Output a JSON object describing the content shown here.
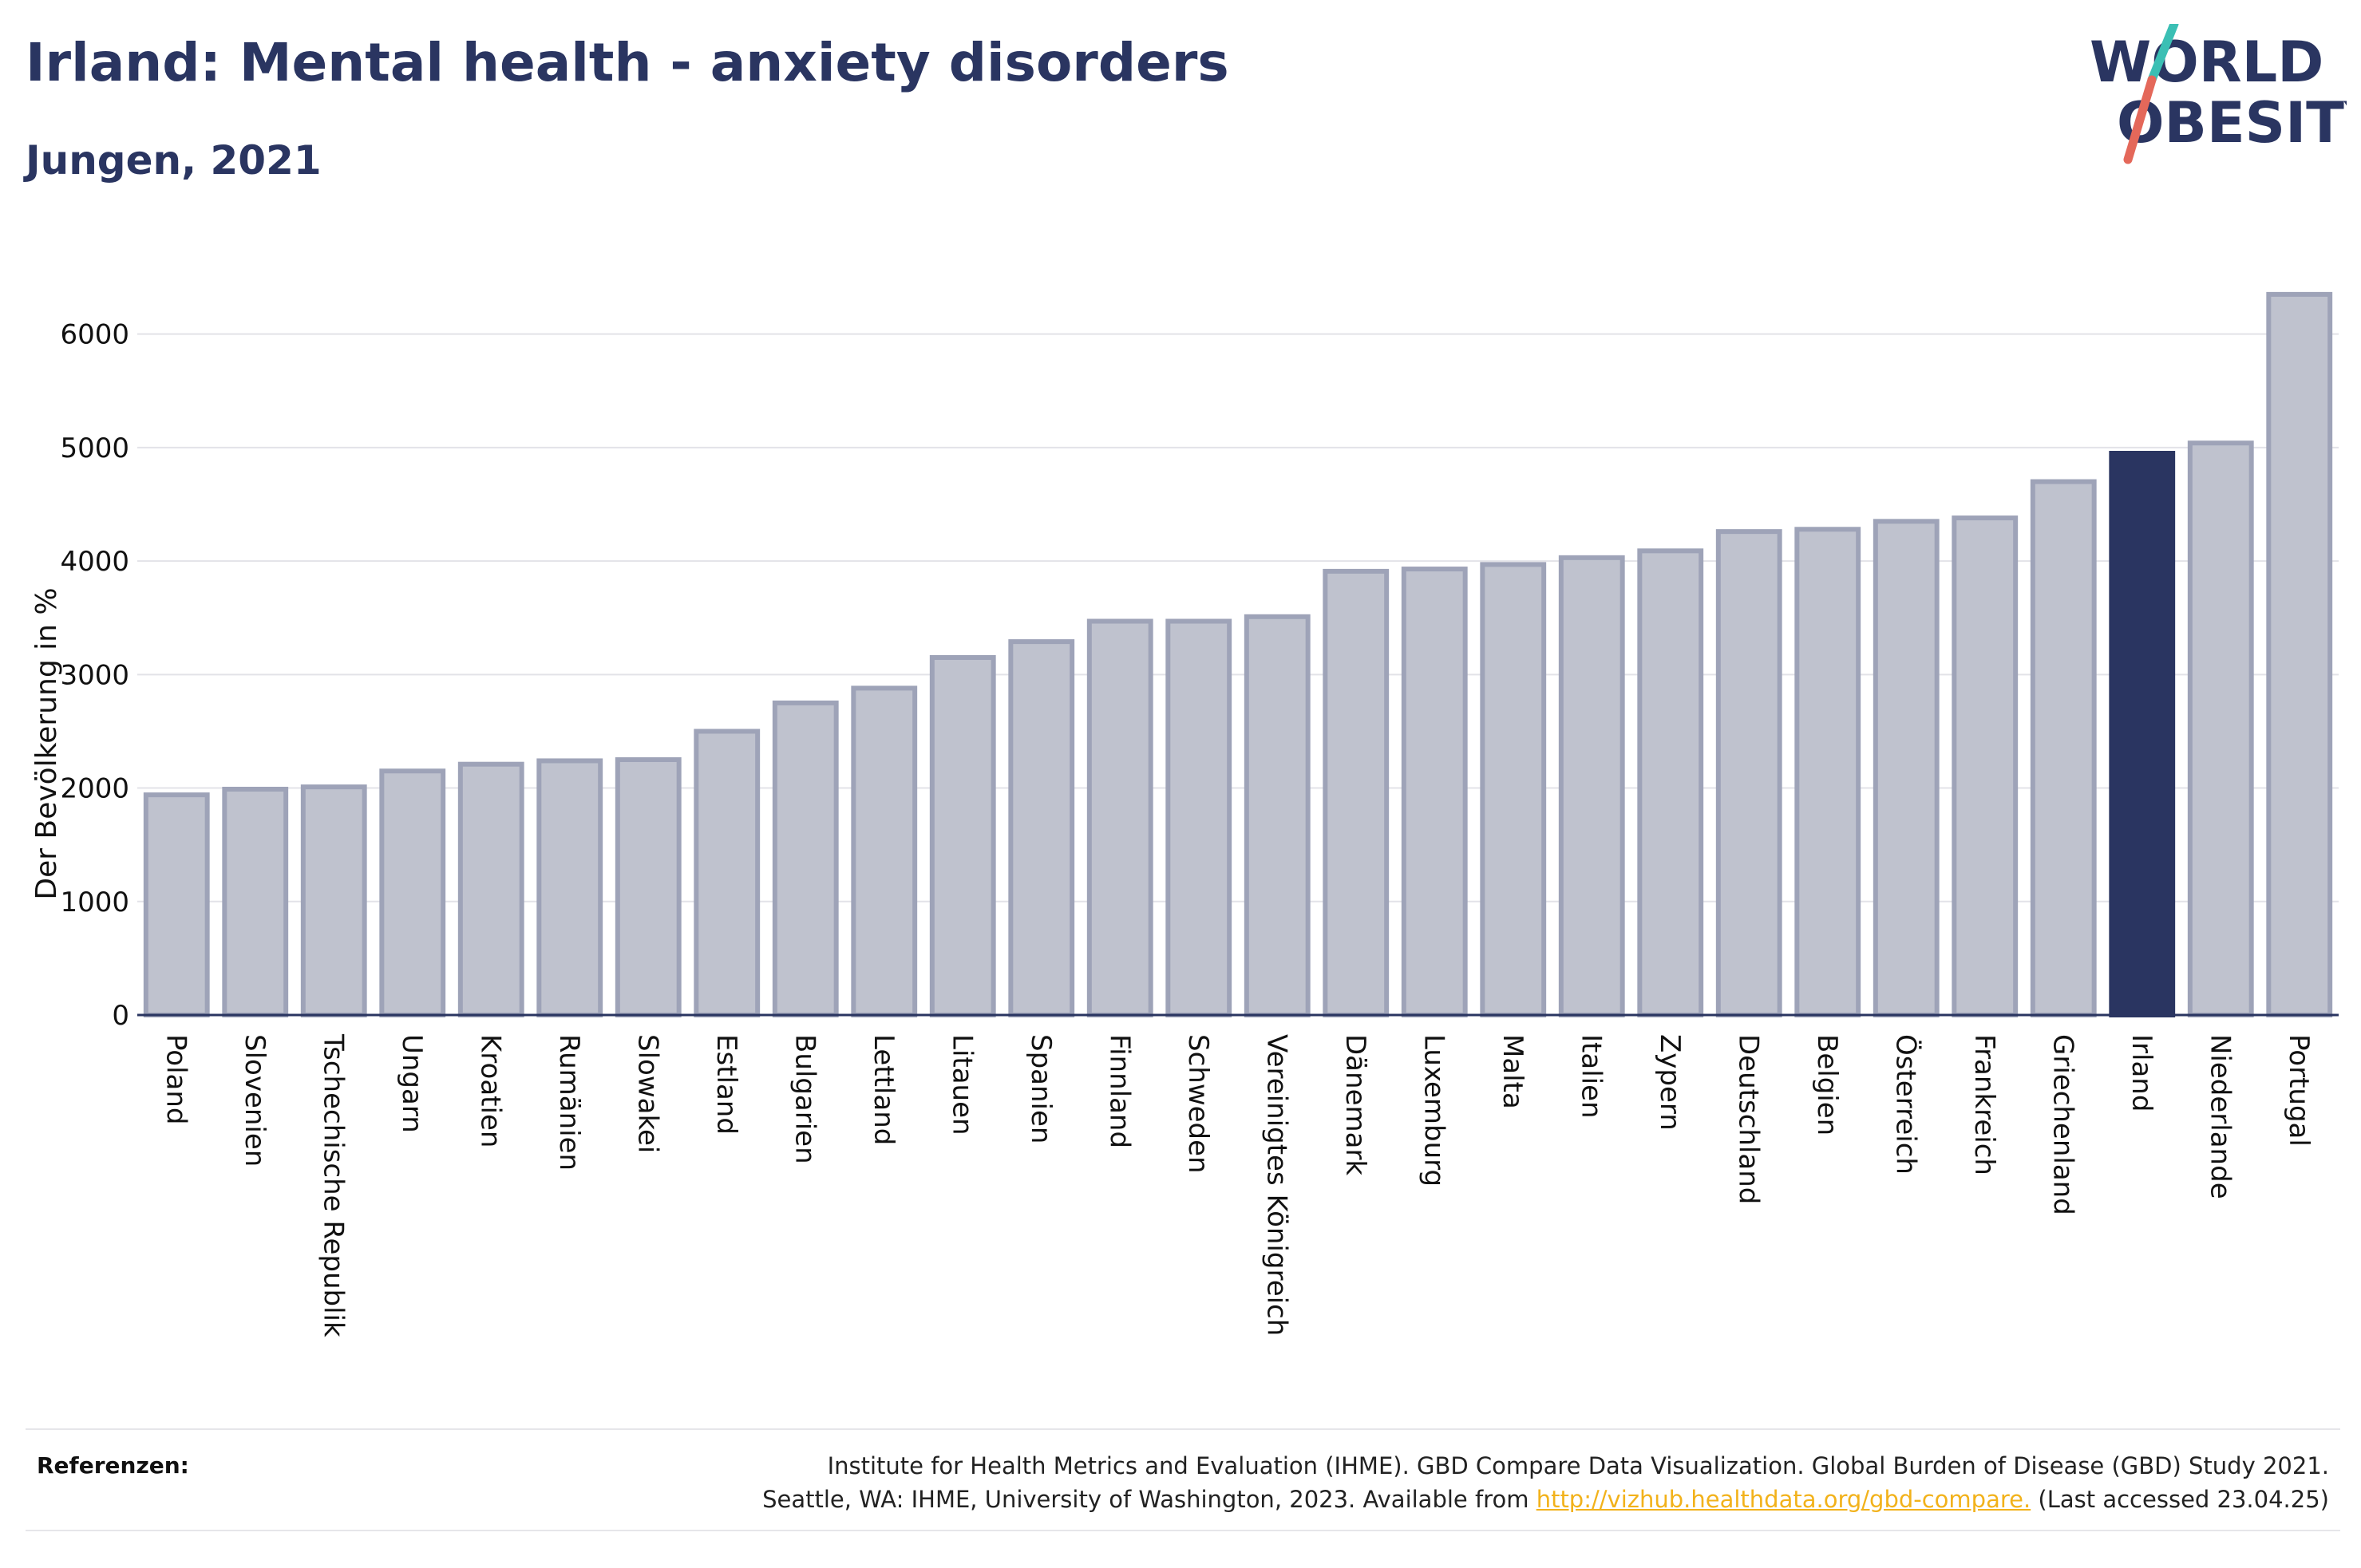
{
  "header": {
    "title": "Irland: Mental health - anxiety disorders",
    "subtitle": "Jungen, 2021"
  },
  "logo": {
    "line1": "WORLD",
    "line2": "OBESITY",
    "colors": {
      "text": "#2a3561",
      "slash_top": "#3bbfb4",
      "slash_bottom": "#e4685a"
    }
  },
  "chart_data": {
    "type": "bar",
    "ylabel": "Der Bevölkerung in %",
    "ylim": [
      0,
      6500
    ],
    "yticks": [
      0,
      1000,
      2000,
      3000,
      4000,
      5000,
      6000
    ],
    "grid": true,
    "categories": [
      "Poland",
      "Slovenien",
      "Tschechische Republik",
      "Ungarn",
      "Kroatien",
      "Rumänien",
      "Slowakei",
      "Estland",
      "Bulgarien",
      "Lettland",
      "Litauen",
      "Spanien",
      "Finnland",
      "Schweden",
      "Vereinigtes Königreich",
      "Dänemark",
      "Luxemburg",
      "Malta",
      "Italien",
      "Zypern",
      "Deutschland",
      "Belgien",
      "Österreich",
      "Frankreich",
      "Griechenland",
      "Irland",
      "Niederlande",
      "Portugal"
    ],
    "values": [
      1940,
      1990,
      2010,
      2150,
      2210,
      2240,
      2250,
      2500,
      2750,
      2880,
      3150,
      3290,
      3470,
      3470,
      3510,
      3910,
      3930,
      3970,
      4030,
      4090,
      4260,
      4280,
      4350,
      4380,
      4700,
      4950,
      5040,
      6350
    ],
    "highlight": "Irland",
    "colors": {
      "bar": "#bfc2ce",
      "bar_border": "#9ea3b8",
      "highlight": "#2a3561"
    }
  },
  "references": {
    "label": "Referenzen:",
    "line1": "Institute for Health Metrics and Evaluation (IHME). GBD Compare Data Visualization. Global Burden of Disease (GBD) Study 2021.",
    "line2_prefix": "Seattle, WA: IHME, University of Washington, 2023. Available from",
    "link": "http://vizhub.healthdata.org/gbd-compare.",
    "line2_suffix": "(Last accessed 23.04.25)"
  }
}
